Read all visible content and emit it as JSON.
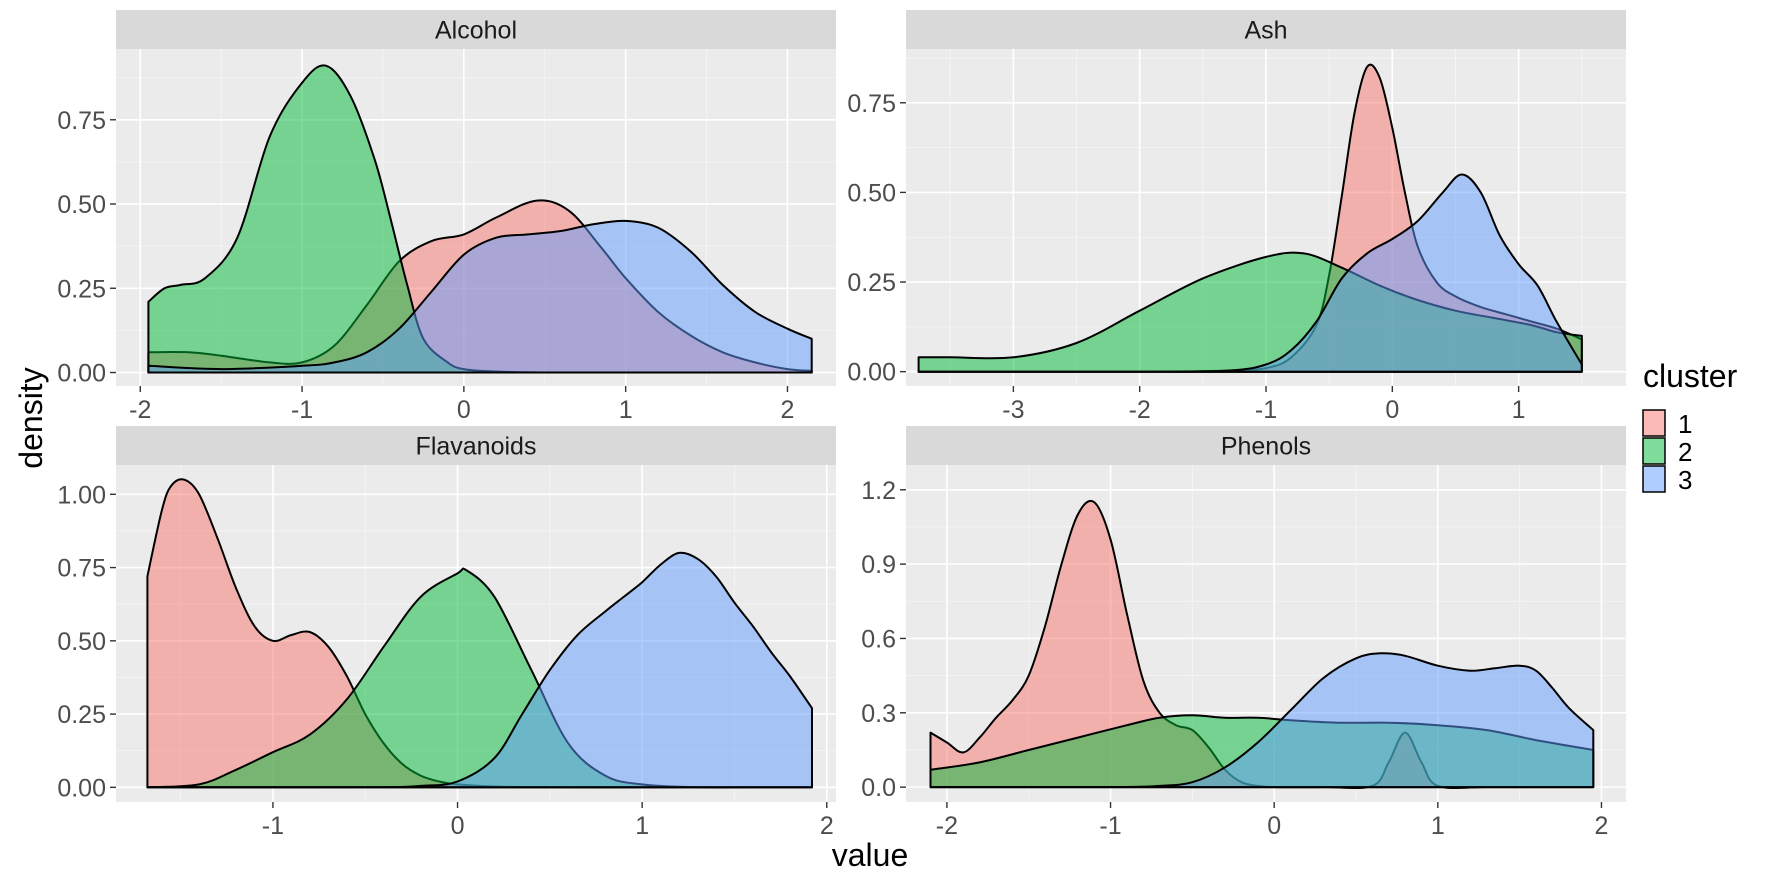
{
  "chart_data": [
    {
      "type": "area",
      "panel": "Alcohol",
      "xlim": [
        -2.15,
        2.3
      ],
      "ylim": [
        -0.04,
        0.96
      ],
      "xticks": [
        -2,
        -1,
        0,
        1,
        2
      ],
      "yticks": [
        0,
        0.25,
        0.5,
        0.75
      ],
      "yticklabels": [
        "0.00",
        "0.25",
        "0.50",
        "0.75"
      ],
      "series": [
        {
          "name": "1",
          "x": [
            -1.95,
            -1.7,
            -1.5,
            -1.2,
            -1.0,
            -0.8,
            -0.6,
            -0.4,
            -0.2,
            0.0,
            0.2,
            0.45,
            0.65,
            0.85,
            1.0,
            1.2,
            1.4,
            1.6,
            1.8,
            2.0,
            2.15
          ],
          "y": [
            0.06,
            0.06,
            0.05,
            0.03,
            0.03,
            0.08,
            0.2,
            0.33,
            0.39,
            0.41,
            0.46,
            0.51,
            0.48,
            0.37,
            0.28,
            0.18,
            0.11,
            0.06,
            0.03,
            0.01,
            0.005
          ]
        },
        {
          "name": "2",
          "x": [
            -1.95,
            -1.85,
            -1.75,
            -1.6,
            -1.4,
            -1.2,
            -1.0,
            -0.85,
            -0.7,
            -0.55,
            -0.45,
            -0.35,
            -0.25,
            -0.1,
            0.0,
            0.2,
            0.5,
            1.0,
            1.5,
            2.15
          ],
          "y": [
            0.21,
            0.25,
            0.26,
            0.28,
            0.4,
            0.7,
            0.86,
            0.91,
            0.82,
            0.63,
            0.45,
            0.26,
            0.1,
            0.03,
            0.01,
            0.003,
            0.0,
            0.0,
            0.0,
            0.0
          ]
        },
        {
          "name": "3",
          "x": [
            -1.95,
            -1.5,
            -1.0,
            -0.8,
            -0.6,
            -0.4,
            -0.2,
            0.0,
            0.2,
            0.4,
            0.6,
            0.8,
            1.0,
            1.2,
            1.4,
            1.6,
            1.8,
            2.0,
            2.15
          ],
          "y": [
            0.02,
            0.01,
            0.02,
            0.03,
            0.06,
            0.13,
            0.24,
            0.35,
            0.4,
            0.41,
            0.42,
            0.44,
            0.45,
            0.43,
            0.36,
            0.26,
            0.18,
            0.13,
            0.1
          ]
        }
      ]
    },
    {
      "type": "area",
      "panel": "Ash",
      "xlim": [
        -3.85,
        1.85
      ],
      "ylim": [
        -0.04,
        0.9
      ],
      "xticks": [
        -3,
        -2,
        -1,
        0,
        1
      ],
      "yticks": [
        0,
        0.25,
        0.5,
        0.75
      ],
      "yticklabels": [
        "0.00",
        "0.25",
        "0.50",
        "0.75"
      ],
      "series": [
        {
          "name": "1",
          "x": [
            -3.75,
            -2.0,
            -1.3,
            -1.0,
            -0.8,
            -0.6,
            -0.5,
            -0.4,
            -0.3,
            -0.2,
            -0.1,
            0.0,
            0.1,
            0.2,
            0.35,
            0.5,
            0.7,
            0.9,
            1.1,
            1.3,
            1.5
          ],
          "y": [
            0.0,
            0.0,
            0.003,
            0.01,
            0.04,
            0.13,
            0.27,
            0.49,
            0.72,
            0.85,
            0.82,
            0.68,
            0.5,
            0.35,
            0.25,
            0.21,
            0.18,
            0.16,
            0.14,
            0.12,
            0.09
          ]
        },
        {
          "name": "2",
          "x": [
            -3.75,
            -3.5,
            -3.0,
            -2.5,
            -2.0,
            -1.5,
            -1.0,
            -0.7,
            -0.4,
            -0.1,
            0.2,
            0.5,
            0.8,
            1.1,
            1.3,
            1.5
          ],
          "y": [
            0.04,
            0.04,
            0.04,
            0.08,
            0.17,
            0.26,
            0.32,
            0.33,
            0.29,
            0.24,
            0.2,
            0.17,
            0.15,
            0.13,
            0.11,
            0.1
          ]
        },
        {
          "name": "3",
          "x": [
            -3.75,
            -2.0,
            -1.3,
            -1.0,
            -0.8,
            -0.6,
            -0.4,
            -0.2,
            0.0,
            0.2,
            0.4,
            0.55,
            0.7,
            0.85,
            1.0,
            1.15,
            1.3,
            1.5
          ],
          "y": [
            0.0,
            0.0,
            0.003,
            0.02,
            0.06,
            0.14,
            0.26,
            0.33,
            0.37,
            0.42,
            0.5,
            0.55,
            0.5,
            0.38,
            0.3,
            0.24,
            0.14,
            0.02
          ]
        }
      ]
    },
    {
      "type": "area",
      "panel": "Flavanoids",
      "xlim": [
        -1.85,
        2.05
      ],
      "ylim": [
        -0.05,
        1.1
      ],
      "xticks": [
        -1,
        0,
        1,
        2
      ],
      "yticks": [
        0,
        0.25,
        0.5,
        0.75,
        1.0
      ],
      "yticklabels": [
        "0.00",
        "0.25",
        "0.50",
        "0.75",
        "1.00"
      ],
      "series": [
        {
          "name": "1",
          "x": [
            -1.68,
            -1.6,
            -1.55,
            -1.48,
            -1.4,
            -1.3,
            -1.2,
            -1.1,
            -1.0,
            -0.9,
            -0.8,
            -0.7,
            -0.6,
            -0.5,
            -0.4,
            -0.3,
            -0.2,
            -0.1,
            0.0,
            0.2,
            0.5,
            1.0,
            1.5,
            1.92
          ],
          "y": [
            0.72,
            0.95,
            1.03,
            1.05,
            1.0,
            0.85,
            0.68,
            0.55,
            0.5,
            0.52,
            0.53,
            0.48,
            0.38,
            0.25,
            0.15,
            0.08,
            0.04,
            0.02,
            0.01,
            0.003,
            0.0,
            0.0,
            0.0,
            0.0
          ]
        },
        {
          "name": "2",
          "x": [
            -1.68,
            -1.4,
            -1.2,
            -1.0,
            -0.8,
            -0.6,
            -0.4,
            -0.2,
            0.0,
            0.05,
            0.2,
            0.4,
            0.6,
            0.8,
            1.0,
            1.3,
            1.6,
            1.92
          ],
          "y": [
            0.0,
            0.01,
            0.06,
            0.12,
            0.18,
            0.3,
            0.48,
            0.65,
            0.73,
            0.74,
            0.65,
            0.4,
            0.15,
            0.04,
            0.01,
            0.0,
            0.0,
            0.0
          ]
        },
        {
          "name": "3",
          "x": [
            -1.68,
            -0.5,
            -0.2,
            0.0,
            0.2,
            0.35,
            0.5,
            0.65,
            0.8,
            0.9,
            1.0,
            1.1,
            1.2,
            1.3,
            1.4,
            1.5,
            1.6,
            1.7,
            1.8,
            1.92
          ],
          "y": [
            0.0,
            0.0,
            0.005,
            0.02,
            0.1,
            0.25,
            0.4,
            0.52,
            0.6,
            0.65,
            0.7,
            0.76,
            0.8,
            0.78,
            0.72,
            0.63,
            0.55,
            0.46,
            0.38,
            0.27
          ]
        }
      ]
    },
    {
      "type": "area",
      "panel": "Phenols",
      "xlim": [
        -2.25,
        2.15
      ],
      "ylim": [
        -0.06,
        1.3
      ],
      "xticks": [
        -2,
        -1,
        0,
        1,
        2
      ],
      "yticks": [
        0,
        0.3,
        0.6,
        0.9,
        1.2
      ],
      "yticklabels": [
        "0.0",
        "0.3",
        "0.6",
        "0.9",
        "1.2"
      ],
      "series": [
        {
          "name": "1",
          "x": [
            -2.1,
            -2.0,
            -1.9,
            -1.8,
            -1.7,
            -1.6,
            -1.5,
            -1.4,
            -1.3,
            -1.2,
            -1.1,
            -1.0,
            -0.9,
            -0.8,
            -0.7,
            -0.6,
            -0.5,
            -0.4,
            -0.3,
            -0.2,
            -0.1,
            0.0,
            0.3,
            0.6,
            0.7,
            0.8,
            0.9,
            1.0,
            1.3,
            1.6,
            1.95
          ],
          "y": [
            0.22,
            0.18,
            0.14,
            0.2,
            0.28,
            0.35,
            0.45,
            0.65,
            0.9,
            1.1,
            1.15,
            1.0,
            0.7,
            0.43,
            0.3,
            0.25,
            0.23,
            0.16,
            0.07,
            0.02,
            0.005,
            0.0,
            0.0,
            0.005,
            0.1,
            0.22,
            0.1,
            0.005,
            0.0,
            0.0,
            0.0
          ]
        },
        {
          "name": "2",
          "x": [
            -2.1,
            -1.8,
            -1.5,
            -1.2,
            -0.9,
            -0.7,
            -0.5,
            -0.3,
            -0.1,
            0.1,
            0.4,
            0.7,
            1.0,
            1.3,
            1.6,
            1.95
          ],
          "y": [
            0.07,
            0.1,
            0.15,
            0.2,
            0.25,
            0.28,
            0.29,
            0.28,
            0.28,
            0.27,
            0.26,
            0.26,
            0.25,
            0.23,
            0.19,
            0.15
          ]
        },
        {
          "name": "3",
          "x": [
            -2.1,
            -1.0,
            -0.7,
            -0.5,
            -0.3,
            -0.1,
            0.1,
            0.3,
            0.5,
            0.65,
            0.8,
            1.0,
            1.2,
            1.35,
            1.5,
            1.6,
            1.7,
            1.8,
            1.95
          ],
          "y": [
            0.0,
            0.0,
            0.005,
            0.02,
            0.08,
            0.18,
            0.31,
            0.44,
            0.52,
            0.54,
            0.53,
            0.49,
            0.47,
            0.48,
            0.49,
            0.47,
            0.4,
            0.32,
            0.23
          ]
        }
      ]
    }
  ],
  "xlabel": "value",
  "ylabel": "density",
  "legend": {
    "title": "cluster",
    "position": "right",
    "items": [
      {
        "label": "1",
        "color": "#F8766D"
      },
      {
        "label": "2",
        "color": "#00BA38"
      },
      {
        "label": "3",
        "color": "#619CFF"
      }
    ]
  },
  "grid": true
}
